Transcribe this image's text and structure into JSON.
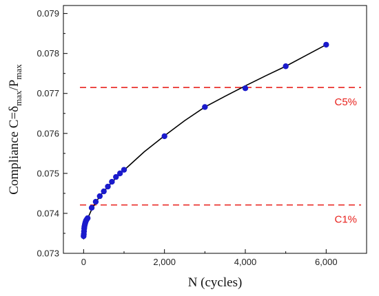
{
  "chart_data": {
    "type": "scatter",
    "xlabel": "N (cycles)",
    "ylabel": {
      "base": "Compliance C=δ",
      "sub1": "max",
      "mid": "/P",
      "sub2": "max"
    },
    "xlim": [
      -500,
      7000
    ],
    "ylim": [
      0.073,
      0.0792
    ],
    "x_ticks": [
      0,
      2000,
      4000,
      6000
    ],
    "x_tick_labels": [
      "0",
      "2,000",
      "4,000",
      "6,000"
    ],
    "y_ticks": [
      0.073,
      0.074,
      0.075,
      0.076,
      0.077,
      0.078,
      0.079
    ],
    "y_tick_labels": [
      "0.073",
      "0.074",
      "0.075",
      "0.076",
      "0.077",
      "0.078",
      "0.079"
    ],
    "grid": false,
    "series": [
      {
        "marker_color": "#1a1acc",
        "x": [
          0,
          5,
          10,
          15,
          20,
          30,
          40,
          50,
          60,
          80,
          100,
          200,
          300,
          400,
          500,
          600,
          700,
          800,
          900,
          1000,
          2000,
          3000,
          4000,
          5000,
          6000
        ],
        "y": [
          0.07343,
          0.07348,
          0.07355,
          0.07362,
          0.07367,
          0.07372,
          0.07376,
          0.07379,
          0.07382,
          0.07385,
          0.07388,
          0.07414,
          0.07429,
          0.07443,
          0.07455,
          0.07467,
          0.07479,
          0.07491,
          0.075,
          0.07509,
          0.07593,
          0.07666,
          0.07713,
          0.07768,
          0.07822
        ]
      }
    ],
    "fit_curve": {
      "color": "#000000",
      "x": [
        0,
        20,
        50,
        100,
        200,
        400,
        700,
        1000,
        1500,
        2000,
        2500,
        3000,
        3500,
        4000,
        4500,
        5000,
        5500,
        6000
      ],
      "y": [
        0.07335,
        0.07358,
        0.07372,
        0.07387,
        0.0741,
        0.07443,
        0.07478,
        0.07508,
        0.07554,
        0.07594,
        0.07632,
        0.07666,
        0.07693,
        0.07719,
        0.07744,
        0.07768,
        0.07795,
        0.07822
      ]
    },
    "reference_lines": [
      {
        "label": "C5%",
        "y": 0.07715,
        "color": "#e8211c"
      },
      {
        "label": "C1%",
        "y": 0.07421,
        "color": "#e8211c"
      }
    ]
  }
}
